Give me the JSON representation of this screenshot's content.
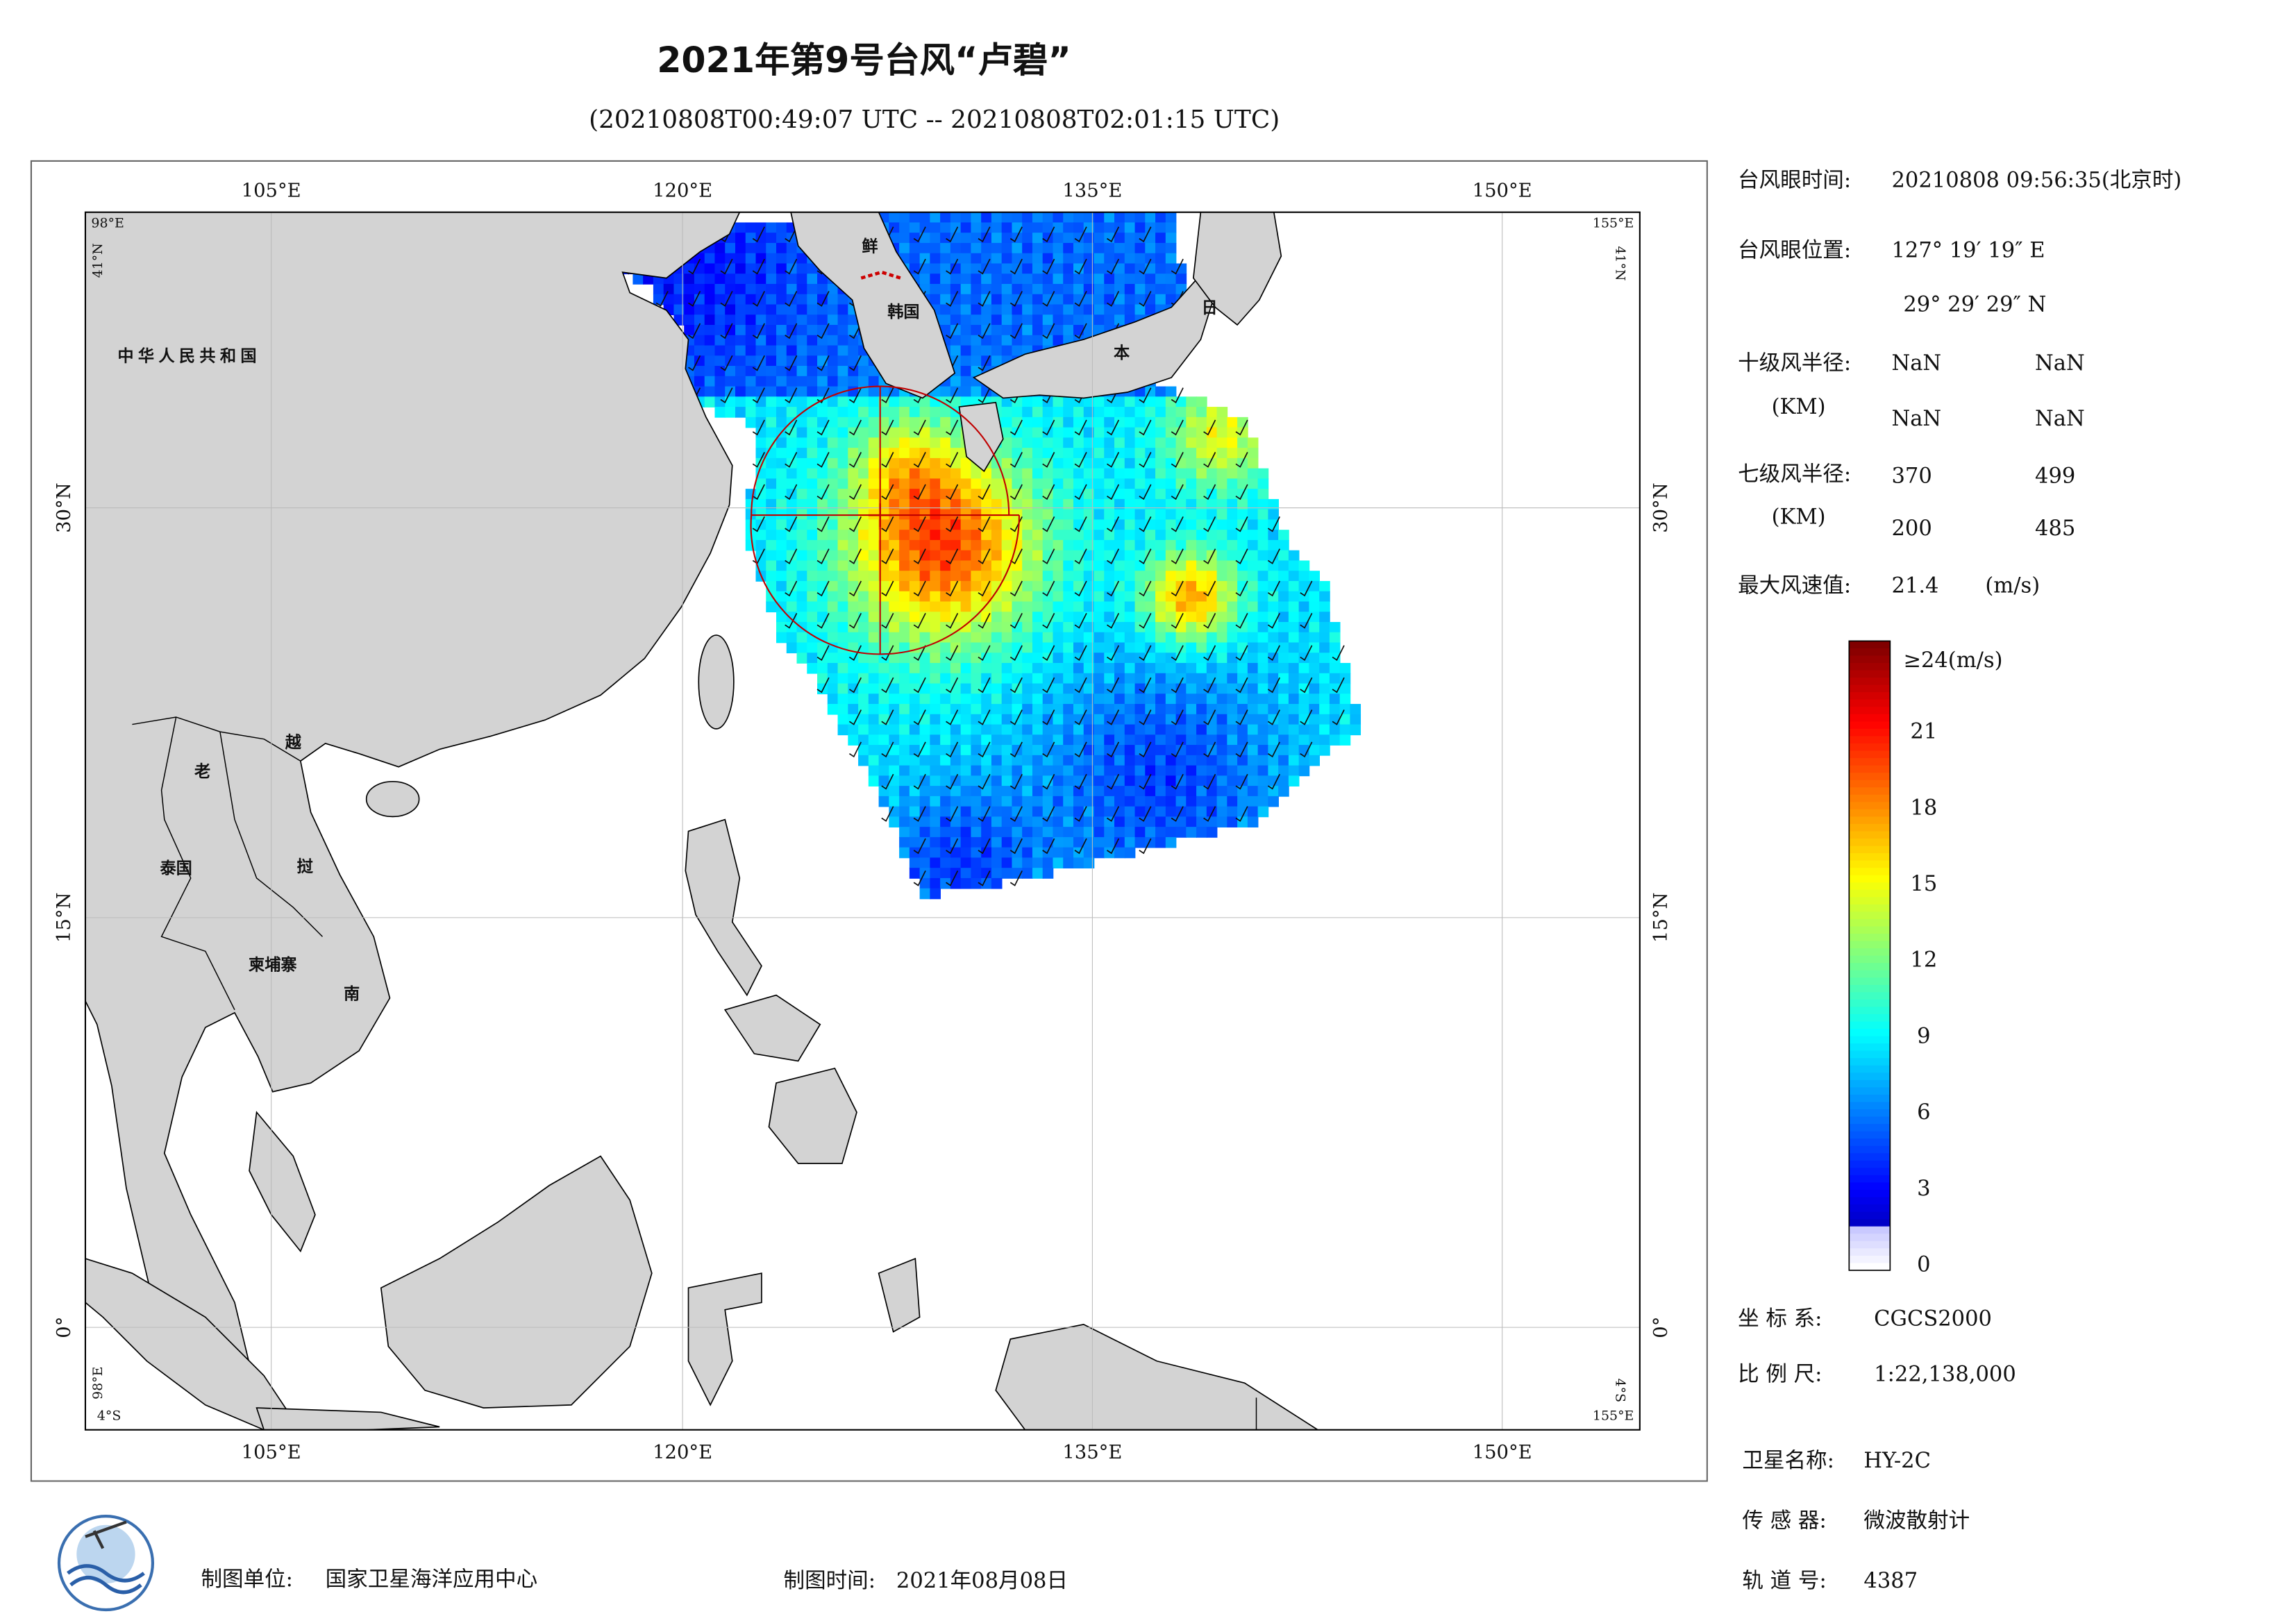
{
  "title": "2021年第9号台风“卢碧”",
  "subtitle": "(20210808T00:49:07 UTC -- 20210808T02:01:15 UTC)",
  "map": {
    "top_lon_labels": [
      "105°E",
      "120°E",
      "135°E",
      "150°E"
    ],
    "bottom_lon_labels": [
      "105°E",
      "120°E",
      "135°E",
      "150°E"
    ],
    "left_lat_labels": [
      "30°N",
      "15°N",
      "0°"
    ],
    "right_lat_labels": [
      "30°N",
      "15°N",
      "0°"
    ],
    "corner_labels": {
      "top_left_lon": "98°E",
      "top_left_lat": "41°N",
      "top_right_lon": "155°E",
      "top_right_lat": "41°N",
      "bottom_left_lon": "98°E",
      "bottom_left_lat": "4°S",
      "bottom_right_lon": "155°E",
      "bottom_right_lat": "4°S"
    },
    "place_labels": [
      "中华人民共和国",
      "老",
      "越",
      "泰国",
      "挝",
      "柬埔寨",
      "南",
      "鲜",
      "韩国",
      "日",
      "本"
    ]
  },
  "info": {
    "eye_time_label": "台风眼时间:",
    "eye_time": "20210808 09:56:35(北京时)",
    "eye_pos_label": "台风眼位置:",
    "eye_lon": "127° 19′ 19″ E",
    "eye_lat": "29° 29′ 29″ N",
    "r10_label": "十级风半径:",
    "r10_unit": "(KM)",
    "r10_values": [
      "NaN",
      "NaN",
      "NaN",
      "NaN"
    ],
    "r7_label": "七级风半径:",
    "r7_unit": "(KM)",
    "r7_values": [
      "370",
      "499",
      "200",
      "485"
    ],
    "max_label": "最大风速值:",
    "max_value": "21.4",
    "max_unit": "(m/s)"
  },
  "colorbar": {
    "max_label": "≥24(m/s)",
    "max": 24,
    "ticks": [
      21,
      18,
      15,
      12,
      9,
      6,
      3,
      0
    ]
  },
  "meta": {
    "crs_label": "坐 标 系:",
    "crs": "CGCS2000",
    "scale_label": "比 例 尺:",
    "scale": "1:22,138,000",
    "sat_label": "卫星名称:",
    "sat": "HY-2C",
    "sensor_label": "传 感 器:",
    "sensor": "微波散射计",
    "orbit_label": "轨 道 号:",
    "orbit": "4387"
  },
  "footer": {
    "unit_label": "制图单位:",
    "unit": "国家卫星海洋应用中心",
    "time_label": "制图时间:",
    "time": "2021年08月08日"
  }
}
